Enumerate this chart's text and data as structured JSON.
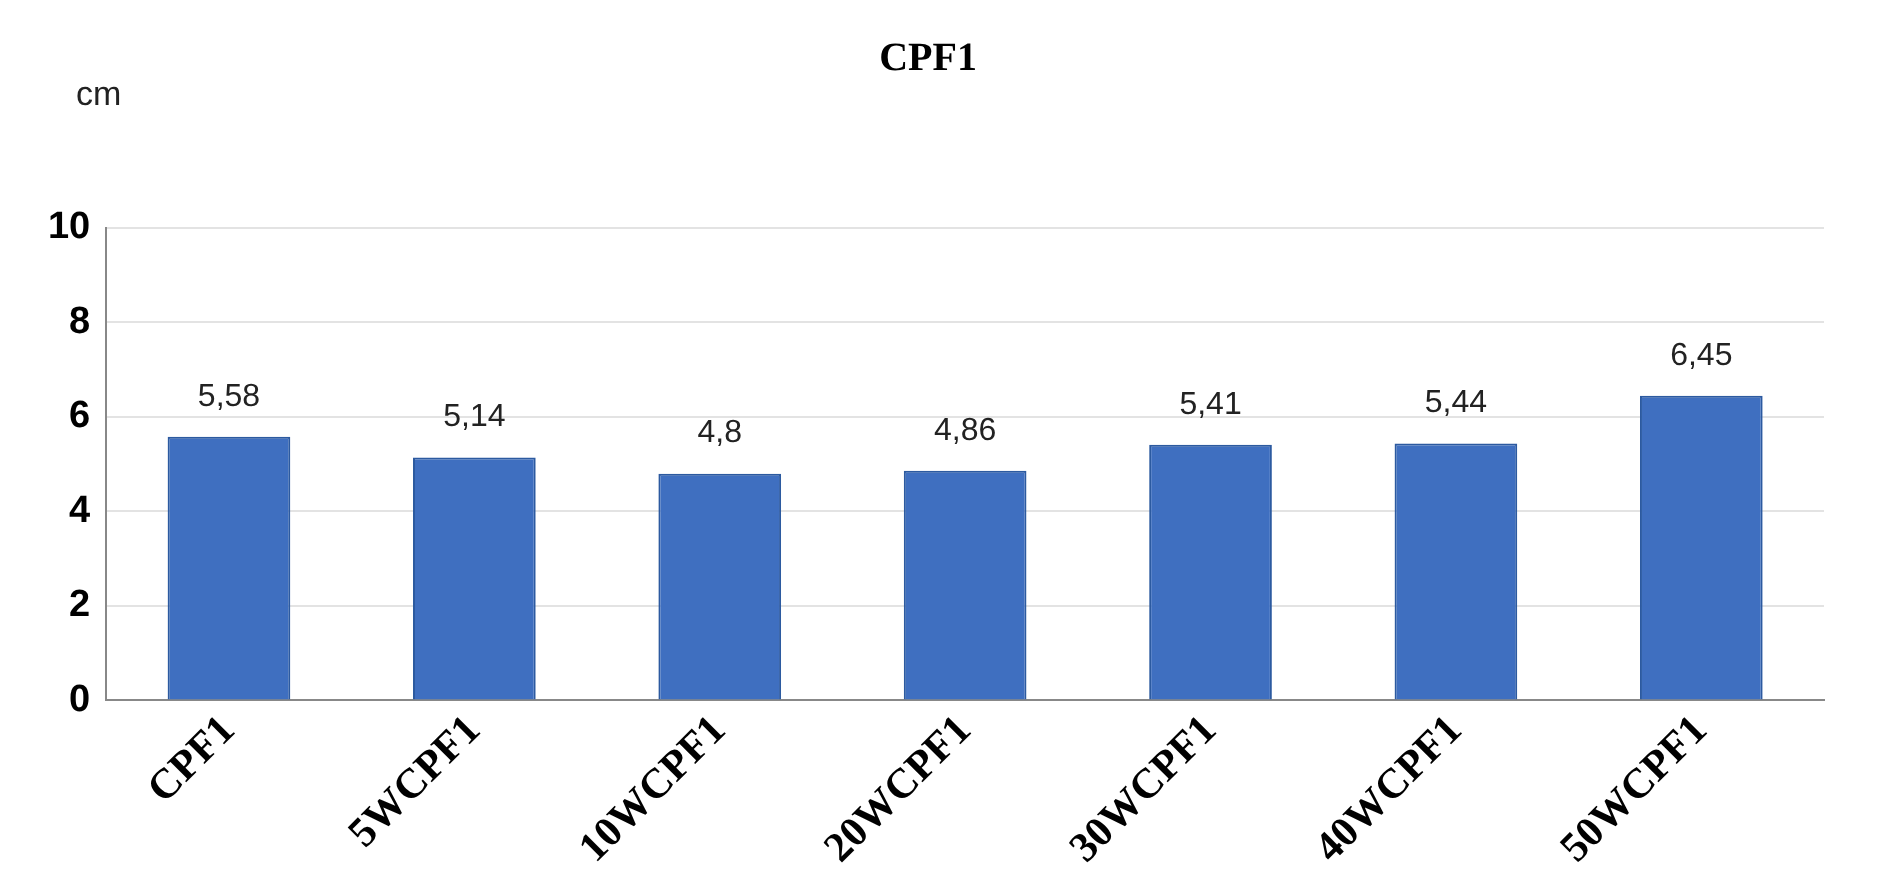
{
  "chart_data": {
    "type": "bar",
    "title": "CPF1",
    "ylabel": "cm",
    "categories": [
      "CPF1",
      "5WCPF1",
      "10WCPF1",
      "20WCPF1",
      "30WCPF1",
      "40WCPF1",
      "50WCPF1"
    ],
    "values": [
      5.58,
      5.14,
      4.8,
      4.86,
      5.41,
      5.44,
      6.45
    ],
    "value_labels": [
      "5,58",
      "5,14",
      "4,8",
      "4,86",
      "5,41",
      "5,44",
      "6,45"
    ],
    "color": "#3f6fc0",
    "ylim": [
      0,
      10
    ],
    "yticks": [
      0,
      2,
      4,
      6,
      8,
      10
    ],
    "grid": "y",
    "legend": false
  }
}
